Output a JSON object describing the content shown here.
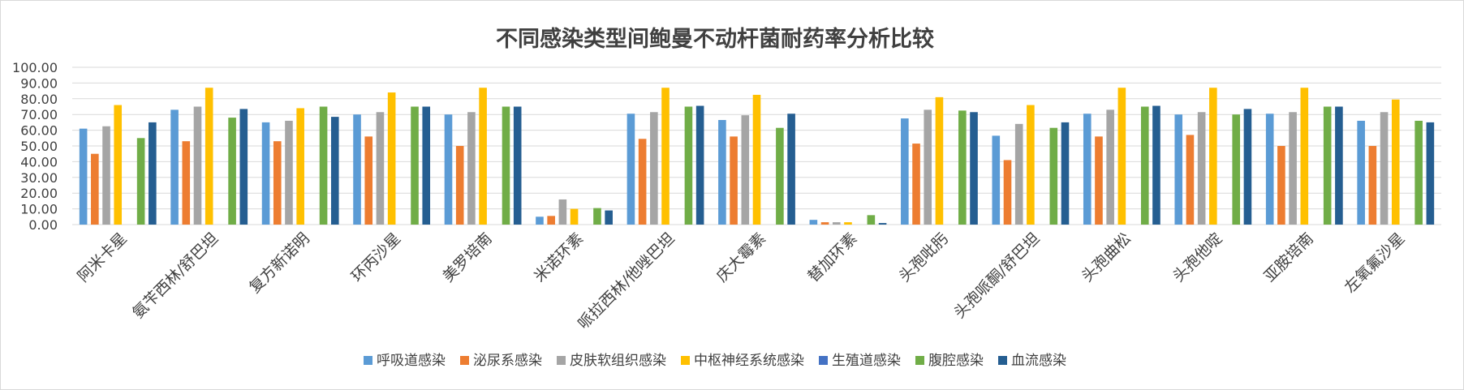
{
  "chart_data": {
    "type": "bar",
    "title": "不同感染类型间鲍曼不动杆菌耐药率分析比较",
    "xlabel": "",
    "ylabel": "",
    "ylim": [
      0,
      100
    ],
    "y_ticks": [
      "0.00",
      "10.00",
      "20.00",
      "30.00",
      "40.00",
      "50.00",
      "60.00",
      "70.00",
      "80.00",
      "90.00",
      "100.00"
    ],
    "grid": true,
    "legend_position": "bottom",
    "categories": [
      "阿米卡星",
      "氨苄西林/舒巴坦",
      "复方新诺明",
      "环丙沙星",
      "美罗培南",
      "米诺环素",
      "哌拉西林/他唑巴坦",
      "庆大霉素",
      "替加环素",
      "头孢吡肟",
      "头孢哌酮/舒巴坦",
      "头孢曲松",
      "头孢他啶",
      "亚胺培南",
      "左氧氟沙星"
    ],
    "series": [
      {
        "name": "呼吸道感染",
        "color": "#5b9bd5",
        "values": [
          61,
          73,
          65,
          70,
          70,
          5,
          70.5,
          66.5,
          3,
          67.5,
          56.5,
          70.5,
          70,
          70.5,
          66
        ]
      },
      {
        "name": "泌尿系感染",
        "color": "#ed7d31",
        "values": [
          45,
          53,
          53,
          56,
          50,
          5.5,
          54.5,
          56,
          1.5,
          51.5,
          41,
          56,
          57,
          50,
          50
        ]
      },
      {
        "name": "皮肤软组织感染",
        "color": "#a5a5a5",
        "values": [
          62.5,
          75,
          66,
          71.5,
          71.5,
          16,
          71.5,
          69.5,
          1.5,
          73,
          64,
          73,
          71.5,
          71.5,
          71.5
        ]
      },
      {
        "name": "中枢神经系统感染",
        "color": "#ffc000",
        "values": [
          76,
          87,
          74,
          84,
          87,
          10,
          87,
          82.5,
          1.5,
          81,
          76,
          87,
          87,
          87,
          79.5
        ]
      },
      {
        "name": "生殖道感染",
        "color": "#4472c4",
        "values": [
          0,
          0,
          0,
          0,
          0,
          0,
          0,
          0,
          0,
          0,
          0,
          0,
          0,
          0,
          0
        ]
      },
      {
        "name": "腹腔感染",
        "color": "#70ad47",
        "values": [
          55,
          68,
          75,
          75,
          75,
          10.5,
          75,
          61.5,
          6,
          72.5,
          61.5,
          75,
          70,
          75,
          66
        ]
      },
      {
        "name": "血流感染",
        "color": "#255e91",
        "values": [
          65,
          73.5,
          68.5,
          75,
          75,
          9,
          75.5,
          70.5,
          1,
          71.5,
          65,
          75.5,
          73.5,
          75,
          65
        ]
      }
    ]
  }
}
